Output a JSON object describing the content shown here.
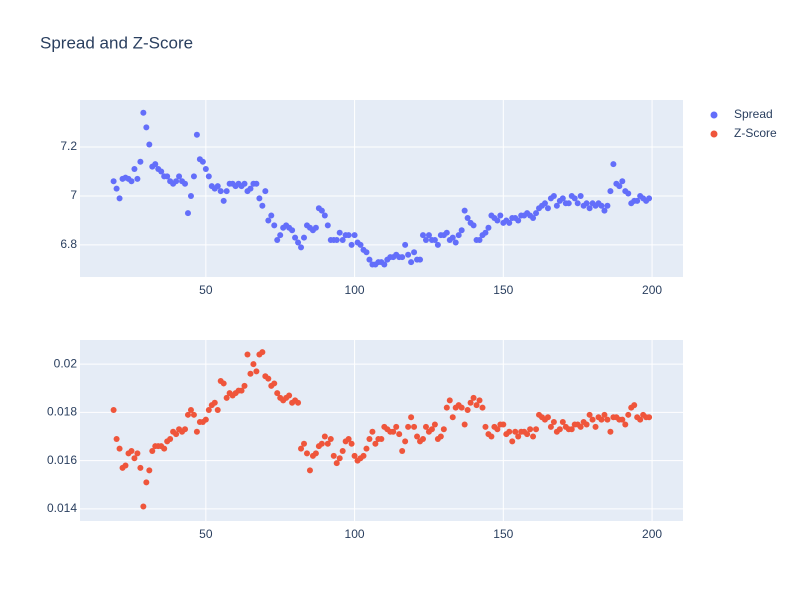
{
  "chart_data": [
    {
      "type": "scatter",
      "title": "Spread and Z-Score",
      "x": [
        19,
        20,
        21,
        22,
        23,
        24,
        25,
        26,
        27,
        28,
        29,
        30,
        31,
        32,
        33,
        34,
        35,
        36,
        37,
        38,
        39,
        40,
        41,
        42,
        43,
        44,
        45,
        46,
        47,
        48,
        49,
        50,
        51,
        52,
        53,
        54,
        55,
        56,
        57,
        58,
        59,
        60,
        61,
        62,
        63,
        64,
        65,
        66,
        67,
        68,
        69,
        70,
        71,
        72,
        73,
        74,
        75,
        76,
        77,
        78,
        79,
        80,
        81,
        82,
        83,
        84,
        85,
        86,
        87,
        88,
        89,
        90,
        91,
        92,
        93,
        94,
        95,
        96,
        97,
        98,
        99,
        100,
        101,
        102,
        103,
        104,
        105,
        106,
        107,
        108,
        109,
        110,
        111,
        112,
        113,
        114,
        115,
        116,
        117,
        118,
        119,
        120,
        121,
        122,
        123,
        124,
        125,
        126,
        127,
        128,
        129,
        130,
        131,
        132,
        133,
        134,
        135,
        136,
        137,
        138,
        139,
        140,
        141,
        142,
        143,
        144,
        145,
        146,
        147,
        148,
        149,
        150,
        151,
        152,
        153,
        154,
        155,
        156,
        157,
        158,
        159,
        160,
        161,
        162,
        163,
        164,
        165,
        166,
        167,
        168,
        169,
        170,
        171,
        172,
        173,
        174,
        175,
        176,
        177,
        178,
        179,
        180,
        181,
        182,
        183,
        184,
        185,
        186,
        187,
        188,
        189,
        190,
        191,
        192,
        193,
        194,
        195,
        196,
        197,
        198,
        199
      ],
      "series": [
        {
          "name": "Spread",
          "color": "#636efa",
          "values": [
            7.06,
            7.03,
            6.99,
            7.07,
            7.075,
            7.07,
            7.06,
            7.11,
            7.07,
            7.14,
            7.34,
            7.28,
            7.21,
            7.12,
            7.13,
            7.11,
            7.1,
            7.08,
            7.08,
            7.06,
            7.05,
            7.06,
            7.08,
            7.06,
            7.05,
            6.93,
            7.0,
            7.08,
            7.25,
            7.15,
            7.14,
            7.11,
            7.08,
            7.04,
            7.03,
            7.04,
            7.02,
            6.98,
            7.02,
            7.05,
            7.05,
            7.04,
            7.05,
            7.04,
            7.05,
            7.02,
            7.03,
            7.05,
            7.05,
            6.99,
            6.96,
            7.02,
            6.9,
            6.92,
            6.88,
            6.82,
            6.84,
            6.87,
            6.88,
            6.87,
            6.86,
            6.83,
            6.81,
            6.79,
            6.83,
            6.88,
            6.87,
            6.86,
            6.87,
            6.95,
            6.94,
            6.92,
            6.88,
            6.82,
            6.82,
            6.82,
            6.85,
            6.82,
            6.84,
            6.84,
            6.8,
            6.84,
            6.81,
            6.8,
            6.78,
            6.77,
            6.74,
            6.72,
            6.72,
            6.73,
            6.73,
            6.72,
            6.74,
            6.75,
            6.75,
            6.76,
            6.75,
            6.75,
            6.8,
            6.76,
            6.73,
            6.77,
            6.74,
            6.74,
            6.84,
            6.82,
            6.84,
            6.82,
            6.82,
            6.8,
            6.84,
            6.84,
            6.85,
            6.82,
            6.83,
            6.81,
            6.84,
            6.86,
            6.94,
            6.91,
            6.89,
            6.88,
            6.82,
            6.82,
            6.84,
            6.85,
            6.87,
            6.92,
            6.91,
            6.9,
            6.92,
            6.89,
            6.9,
            6.89,
            6.91,
            6.91,
            6.9,
            6.92,
            6.92,
            6.93,
            6.92,
            6.91,
            6.93,
            6.95,
            6.96,
            6.97,
            6.95,
            6.99,
            7.0,
            6.96,
            6.98,
            6.99,
            6.97,
            6.97,
            7.0,
            6.99,
            6.97,
            7.0,
            6.96,
            6.97,
            6.95,
            6.97,
            6.96,
            6.97,
            6.96,
            6.94,
            6.96,
            7.02,
            7.13,
            7.05,
            7.04,
            7.06,
            7.02,
            7.01,
            6.97,
            6.98,
            6.98,
            7.0,
            6.99,
            6.98,
            6.99
          ]
        }
      ],
      "xlim": [
        7.7,
        210.4
      ],
      "xticks": [
        50,
        100,
        150,
        200
      ],
      "ylim": [
        6.669,
        7.392
      ],
      "yticks": [
        6.8,
        7,
        7.2
      ],
      "grid": true
    },
    {
      "type": "scatter",
      "x": [
        19,
        20,
        21,
        22,
        23,
        24,
        25,
        26,
        27,
        28,
        29,
        30,
        31,
        32,
        33,
        34,
        35,
        36,
        37,
        38,
        39,
        40,
        41,
        42,
        43,
        44,
        45,
        46,
        47,
        48,
        49,
        50,
        51,
        52,
        53,
        54,
        55,
        56,
        57,
        58,
        59,
        60,
        61,
        62,
        63,
        64,
        65,
        66,
        67,
        68,
        69,
        70,
        71,
        72,
        73,
        74,
        75,
        76,
        77,
        78,
        79,
        80,
        81,
        82,
        83,
        84,
        85,
        86,
        87,
        88,
        89,
        90,
        91,
        92,
        93,
        94,
        95,
        96,
        97,
        98,
        99,
        100,
        101,
        102,
        103,
        104,
        105,
        106,
        107,
        108,
        109,
        110,
        111,
        112,
        113,
        114,
        115,
        116,
        117,
        118,
        119,
        120,
        121,
        122,
        123,
        124,
        125,
        126,
        127,
        128,
        129,
        130,
        131,
        132,
        133,
        134,
        135,
        136,
        137,
        138,
        139,
        140,
        141,
        142,
        143,
        144,
        145,
        146,
        147,
        148,
        149,
        150,
        151,
        152,
        153,
        154,
        155,
        156,
        157,
        158,
        159,
        160,
        161,
        162,
        163,
        164,
        165,
        166,
        167,
        168,
        169,
        170,
        171,
        172,
        173,
        174,
        175,
        176,
        177,
        178,
        179,
        180,
        181,
        182,
        183,
        184,
        185,
        186,
        187,
        188,
        189,
        190,
        191,
        192,
        193,
        194,
        195,
        196,
        197,
        198,
        199
      ],
      "series": [
        {
          "name": "Z-Score",
          "color": "#ef553b",
          "values": [
            0.0181,
            0.0169,
            0.0165,
            0.0157,
            0.0158,
            0.0163,
            0.0164,
            0.0161,
            0.0163,
            0.0157,
            0.0141,
            0.0151,
            0.0156,
            0.0164,
            0.0166,
            0.0166,
            0.0166,
            0.0165,
            0.0168,
            0.0169,
            0.0172,
            0.0171,
            0.0173,
            0.0172,
            0.0173,
            0.0179,
            0.0181,
            0.0179,
            0.0172,
            0.0176,
            0.0176,
            0.0177,
            0.0181,
            0.0183,
            0.0184,
            0.0181,
            0.0193,
            0.0192,
            0.0186,
            0.0188,
            0.0187,
            0.0188,
            0.0189,
            0.0189,
            0.0191,
            0.0204,
            0.0196,
            0.02,
            0.0197,
            0.0204,
            0.0205,
            0.0195,
            0.0194,
            0.0191,
            0.0192,
            0.0188,
            0.0186,
            0.0185,
            0.0186,
            0.0187,
            0.0184,
            0.0185,
            0.0184,
            0.0165,
            0.0167,
            0.0163,
            0.0156,
            0.0162,
            0.0163,
            0.0166,
            0.0167,
            0.017,
            0.0167,
            0.0169,
            0.0162,
            0.0159,
            0.0161,
            0.0164,
            0.0168,
            0.0169,
            0.0167,
            0.0162,
            0.016,
            0.0161,
            0.0162,
            0.0165,
            0.0169,
            0.0172,
            0.0167,
            0.0169,
            0.0169,
            0.0174,
            0.0173,
            0.0172,
            0.0172,
            0.0174,
            0.0171,
            0.0164,
            0.0168,
            0.0174,
            0.0178,
            0.0174,
            0.017,
            0.0168,
            0.0169,
            0.0174,
            0.0172,
            0.0173,
            0.0175,
            0.0169,
            0.017,
            0.0173,
            0.0182,
            0.0185,
            0.0178,
            0.0182,
            0.0183,
            0.0182,
            0.0175,
            0.0181,
            0.0184,
            0.0186,
            0.0183,
            0.0185,
            0.0182,
            0.0174,
            0.0171,
            0.017,
            0.0174,
            0.0173,
            0.0175,
            0.0175,
            0.0171,
            0.0172,
            0.0168,
            0.0172,
            0.017,
            0.0172,
            0.0172,
            0.0171,
            0.0173,
            0.017,
            0.0173,
            0.0179,
            0.0178,
            0.0177,
            0.0178,
            0.0174,
            0.0176,
            0.0172,
            0.0173,
            0.0176,
            0.0174,
            0.0173,
            0.0173,
            0.0175,
            0.0175,
            0.0174,
            0.0176,
            0.0175,
            0.0179,
            0.0177,
            0.0174,
            0.0178,
            0.0177,
            0.0179,
            0.0177,
            0.0172,
            0.0178,
            0.0178,
            0.0177,
            0.0177,
            0.0175,
            0.0179,
            0.0182,
            0.0183,
            0.0178,
            0.0177,
            0.0179,
            0.0178,
            0.0178
          ]
        }
      ],
      "xlim": [
        7.7,
        210.4
      ],
      "xticks": [
        50,
        100,
        150,
        200
      ],
      "ylim": [
        0.0135,
        0.021
      ],
      "yticks": [
        0.014,
        0.016,
        0.018,
        0.02
      ],
      "grid": true
    }
  ]
}
